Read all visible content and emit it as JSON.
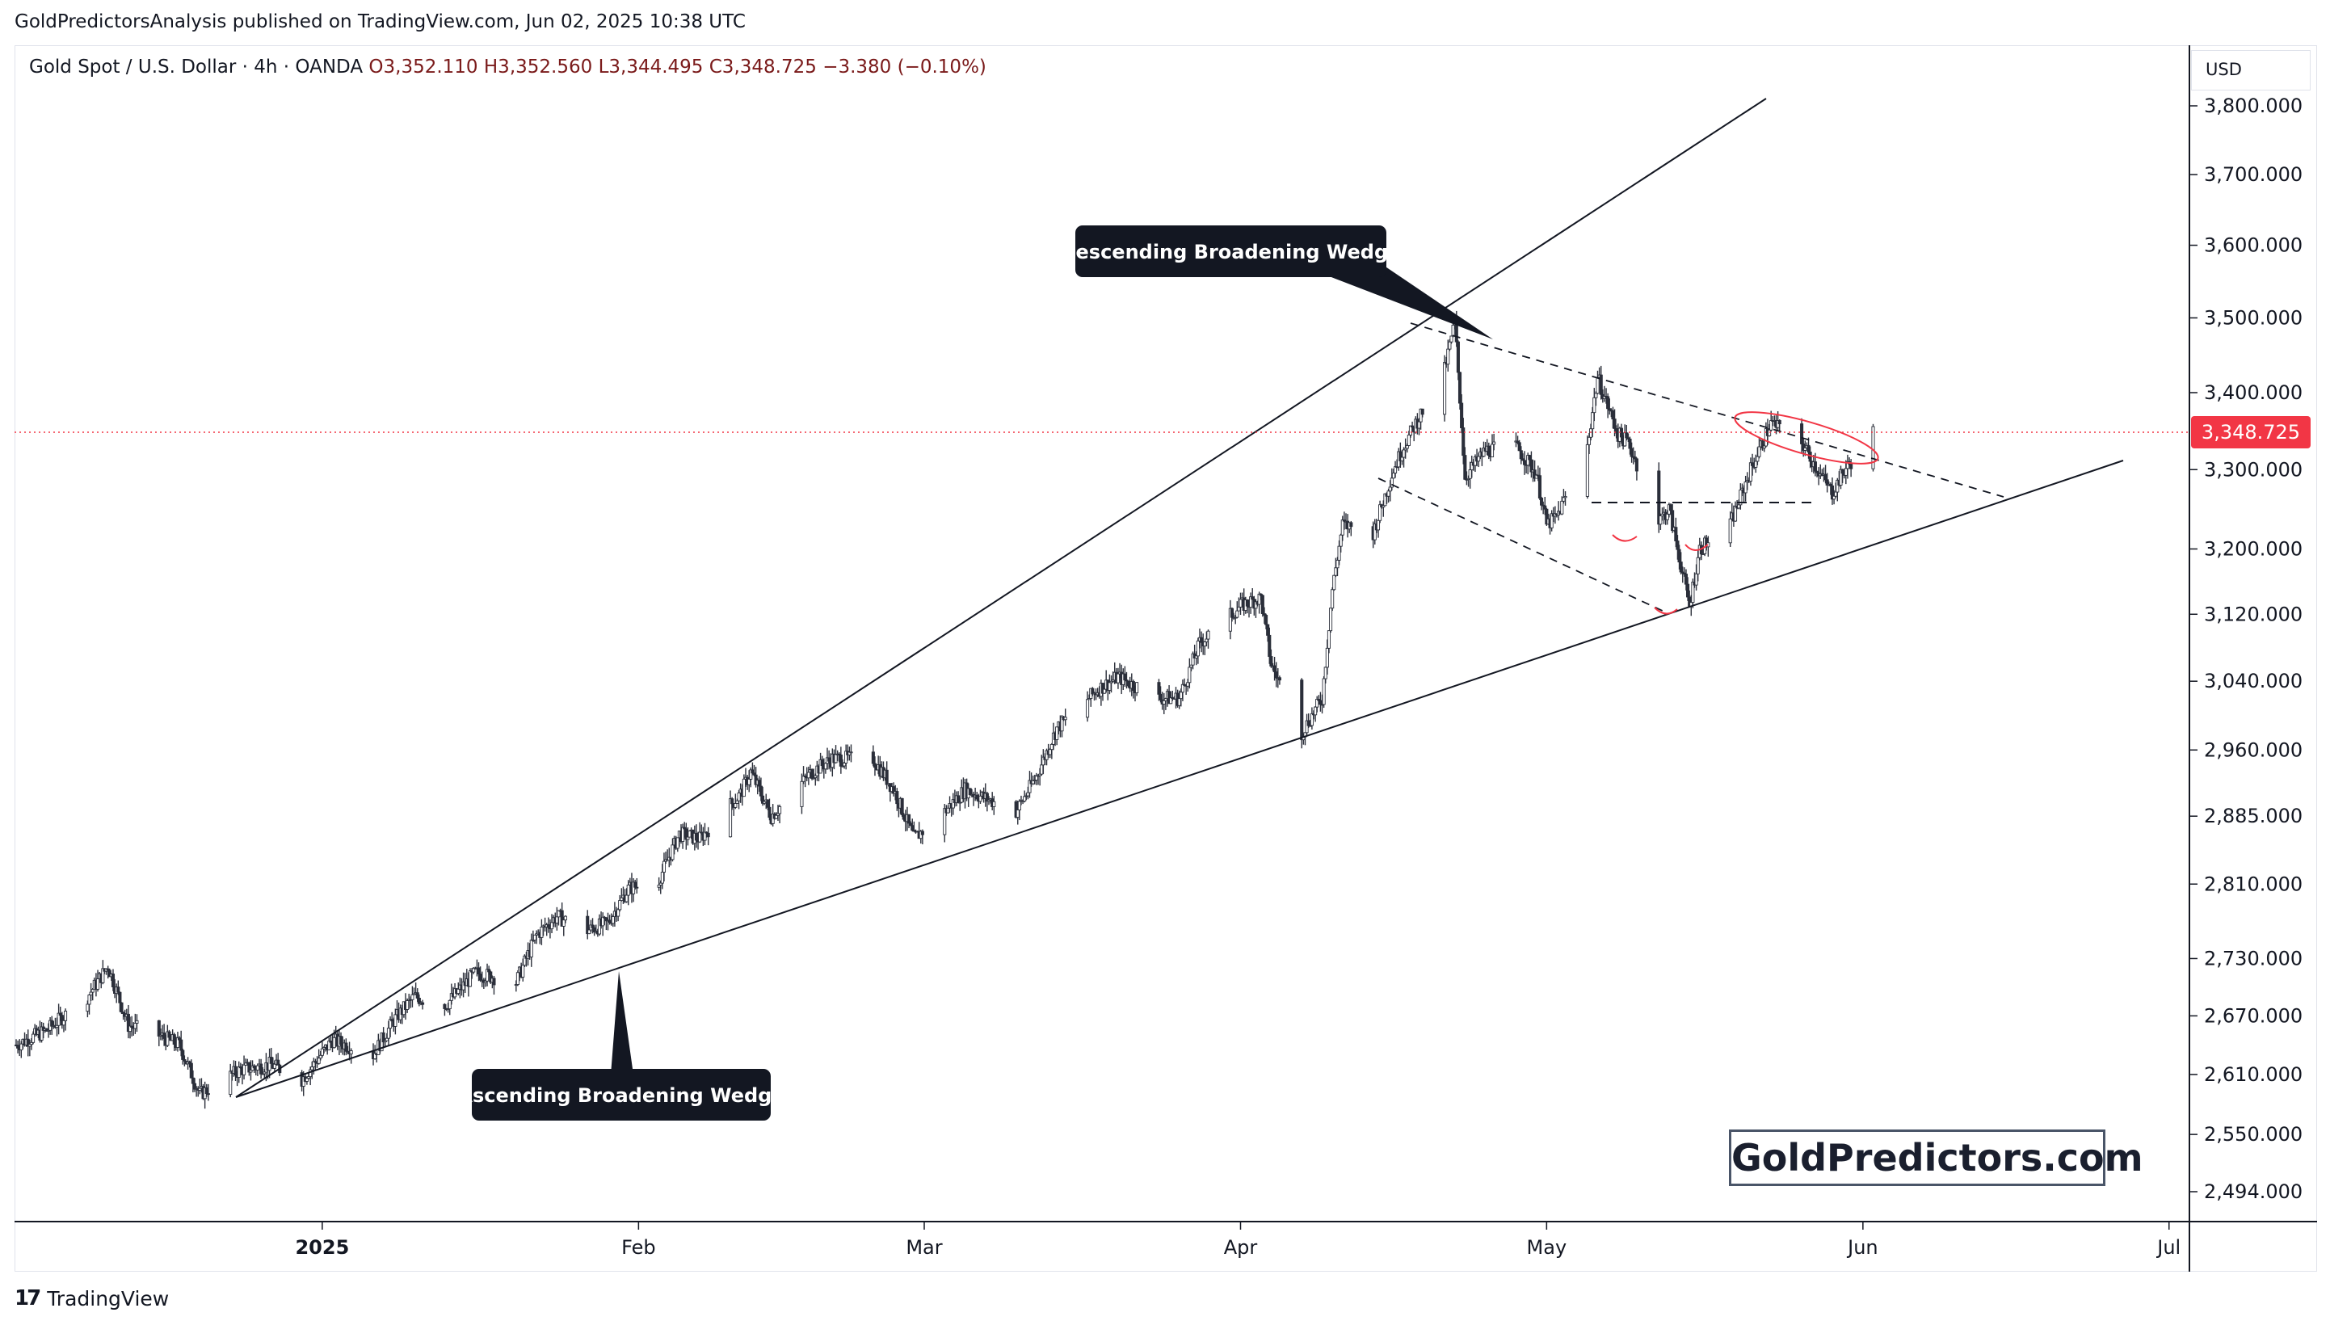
{
  "header": {
    "publisher_line": "GoldPredictorsAnalysis published on TradingView.com, Jun 02, 2025 10:38 UTC"
  },
  "legend": {
    "symbol": "Gold Spot / U.S. Dollar · 4h · OANDA",
    "open": "O3,352.110",
    "high": "H3,352.560",
    "low": "L3,344.495",
    "close": "C3,348.725",
    "change": "−3.380 (−0.10%)"
  },
  "price_axis": {
    "currency": "USD",
    "current_price_label": "3,348.725",
    "current_price_color": "#f23645"
  },
  "annotations": {
    "descending": "Descending Broadening Wedge",
    "ascending": "Ascending Broadening Wedge"
  },
  "watermark": "GoldPredictors.com",
  "footer": {
    "brand": "TradingView",
    "logo_text": "17"
  },
  "colors": {
    "up": "#089981",
    "down": "#f23645",
    "candle": "#2b2f3a",
    "callout_bg": "#131722"
  },
  "chart_data": {
    "type": "candlestick",
    "title": "",
    "y_ticks": [
      3800,
      3700,
      3600,
      3500,
      3400,
      3300,
      3200,
      3120,
      3040,
      2960,
      2885,
      2810,
      2730,
      2670,
      2610,
      2550,
      2494
    ],
    "y_tick_labels": [
      "3,800.000",
      "3,700.000",
      "3,600.000",
      "3,500.000",
      "3,400.000",
      "3,300.000",
      "3,200.000",
      "3,120.000",
      "3,040.000",
      "2,960.000",
      "2,885.000",
      "2,810.000",
      "2,730.000",
      "2,670.000",
      "2,610.000",
      "2,550.000",
      "2,494.000"
    ],
    "x_ticks": [
      "2025",
      "Feb",
      "Mar",
      "Apr",
      "May",
      "Jun",
      "Jul"
    ],
    "x_tick_dates": [
      "2025-01-01",
      "2025-02-01",
      "2025-03-01",
      "2025-04-01",
      "2025-05-01",
      "2025-06-01",
      "2025-07-01"
    ],
    "x_range": [
      "2024-12-02",
      "2025-07-03"
    ],
    "y_range": [
      2465,
      3830
    ],
    "scale": "log",
    "current_price": 3348.725,
    "price_path": [
      [
        "2024-12-02",
        2640
      ],
      [
        "2024-12-05",
        2655
      ],
      [
        "2024-12-09",
        2690
      ],
      [
        "2024-12-11",
        2722
      ],
      [
        "2024-12-13",
        2660
      ],
      [
        "2024-12-16",
        2650
      ],
      [
        "2024-12-18",
        2640
      ],
      [
        "2024-12-20",
        2590
      ],
      [
        "2024-12-24",
        2615
      ],
      [
        "2024-12-27",
        2620
      ],
      [
        "2024-12-30",
        2605
      ],
      [
        "2025-01-02",
        2645
      ],
      [
        "2025-01-06",
        2630
      ],
      [
        "2025-01-08",
        2665
      ],
      [
        "2025-01-10",
        2690
      ],
      [
        "2025-01-13",
        2680
      ],
      [
        "2025-01-16",
        2715
      ],
      [
        "2025-01-20",
        2705
      ],
      [
        "2025-01-22",
        2755
      ],
      [
        "2025-01-24",
        2775
      ],
      [
        "2025-01-27",
        2760
      ],
      [
        "2025-01-29",
        2768
      ],
      [
        "2025-01-31",
        2805
      ],
      [
        "2025-02-03",
        2815
      ],
      [
        "2025-02-05",
        2865
      ],
      [
        "2025-02-07",
        2860
      ],
      [
        "2025-02-11",
        2910
      ],
      [
        "2025-02-12",
        2935
      ],
      [
        "2025-02-14",
        2885
      ],
      [
        "2025-02-18",
        2935
      ],
      [
        "2025-02-20",
        2950
      ],
      [
        "2025-02-24",
        2950
      ],
      [
        "2025-02-26",
        2915
      ],
      [
        "2025-02-28",
        2860
      ],
      [
        "2025-03-03",
        2890
      ],
      [
        "2025-03-05",
        2915
      ],
      [
        "2025-03-07",
        2905
      ],
      [
        "2025-03-10",
        2890
      ],
      [
        "2025-03-12",
        2930
      ],
      [
        "2025-03-14",
        2985
      ],
      [
        "2025-03-18",
        3030
      ],
      [
        "2025-03-20",
        3045
      ],
      [
        "2025-03-24",
        3020
      ],
      [
        "2025-03-26",
        3020
      ],
      [
        "2025-03-28",
        3085
      ],
      [
        "2025-04-01",
        3130
      ],
      [
        "2025-04-03",
        3140
      ],
      [
        "2025-04-04",
        3060
      ],
      [
        "2025-04-07",
        2980
      ],
      [
        "2025-04-09",
        3020
      ],
      [
        "2025-04-10",
        3150
      ],
      [
        "2025-04-11",
        3230
      ],
      [
        "2025-04-14",
        3220
      ],
      [
        "2025-04-16",
        3300
      ],
      [
        "2025-04-17",
        3330
      ],
      [
        "2025-04-21",
        3430
      ],
      [
        "2025-04-22",
        3495
      ],
      [
        "2025-04-23",
        3290
      ],
      [
        "2025-04-25",
        3325
      ],
      [
        "2025-04-28",
        3330
      ],
      [
        "2025-04-30",
        3295
      ],
      [
        "2025-05-01",
        3230
      ],
      [
        "2025-05-02",
        3240
      ],
      [
        "2025-05-05",
        3330
      ],
      [
        "2025-05-06",
        3420
      ],
      [
        "2025-05-08",
        3345
      ],
      [
        "2025-05-09",
        3335
      ],
      [
        "2025-05-12",
        3235
      ],
      [
        "2025-05-13",
        3250
      ],
      [
        "2025-05-15",
        3130
      ],
      [
        "2025-05-16",
        3200
      ],
      [
        "2025-05-19",
        3230
      ],
      [
        "2025-05-21",
        3300
      ],
      [
        "2025-05-23",
        3360
      ],
      [
        "2025-05-26",
        3335
      ],
      [
        "2025-05-28",
        3290
      ],
      [
        "2025-05-29",
        3270
      ],
      [
        "2025-05-30",
        3295
      ],
      [
        "2025-06-02",
        3348.725
      ]
    ]
  }
}
